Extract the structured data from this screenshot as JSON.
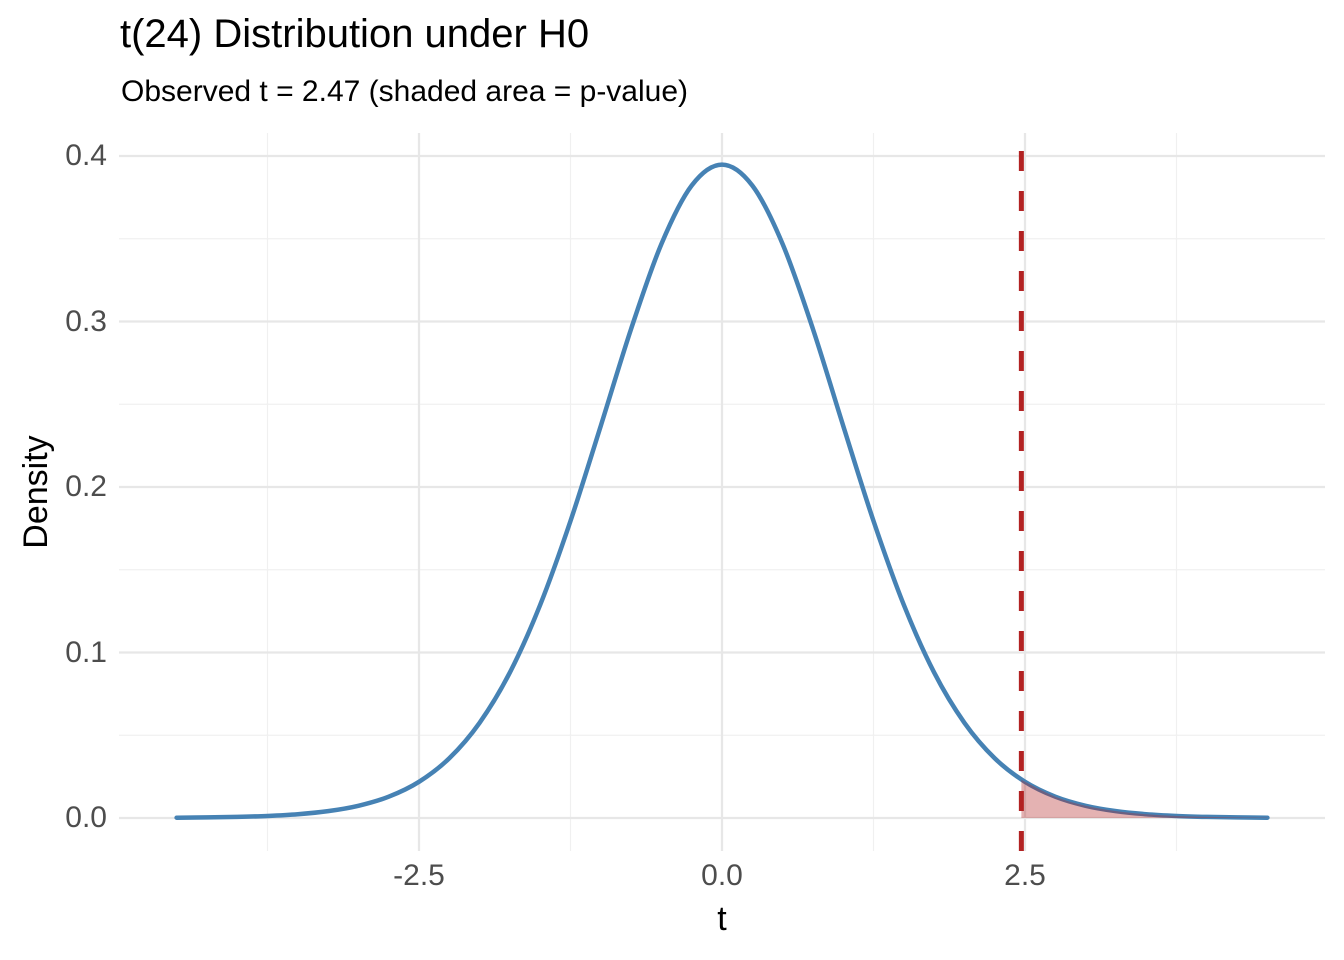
{
  "chart_data": {
    "type": "line",
    "title": "t(24) Distribution under H0",
    "subtitle": "Observed t = 2.47 (shaded area = p-value)",
    "xlabel": "t",
    "ylabel": "Density",
    "distribution": "t",
    "df": 24,
    "observed_t": 2.47,
    "x_ticks": {
      "values": [
        -2.5,
        0,
        2.5
      ],
      "labels": [
        "-2.5",
        "0.0",
        "2.5"
      ]
    },
    "y_ticks": {
      "values": [
        0,
        0.1,
        0.2,
        0.3,
        0.4
      ],
      "labels": [
        "0.0",
        "0.1",
        "0.2",
        "0.3",
        "0.4"
      ]
    },
    "x_minor_ticks": [
      -3.75,
      -1.25,
      1.25,
      3.75
    ],
    "y_minor_ticks": [
      0.05,
      0.15,
      0.25,
      0.35
    ],
    "xlim": [
      -4.96,
      4.97
    ],
    "ylim": [
      -0.0197,
      0.4137
    ],
    "grid": true,
    "legend": "none",
    "series": [
      {
        "name": "t24-density-curve",
        "x": [
          -4.5,
          -4.25,
          -4.0,
          -3.75,
          -3.5,
          -3.25,
          -3.0,
          -2.75,
          -2.5,
          -2.25,
          -2.0,
          -1.75,
          -1.5,
          -1.25,
          -1.0,
          -0.75,
          -0.5,
          -0.25,
          0,
          0.25,
          0.5,
          0.75,
          1.0,
          1.25,
          1.5,
          1.75,
          2.0,
          2.25,
          2.5,
          2.75,
          3.0,
          3.25,
          3.5,
          3.75,
          4.0,
          4.25,
          4.5
        ],
        "y": [
          0.00019,
          0.00035,
          0.00067,
          0.00124,
          0.00228,
          0.00414,
          0.00738,
          0.01287,
          0.02187,
          0.0361,
          0.05754,
          0.08795,
          0.12879,
          0.17949,
          0.237,
          0.29552,
          0.34684,
          0.38219,
          0.39481,
          0.38219,
          0.34684,
          0.29552,
          0.237,
          0.17949,
          0.12879,
          0.08795,
          0.05754,
          0.0361,
          0.02187,
          0.01287,
          0.00738,
          0.00414,
          0.00228,
          0.00124,
          0.00067,
          0.00035,
          0.00019
        ]
      }
    ],
    "vline": {
      "x": 2.47,
      "linetype": "dashed"
    },
    "shaded_region": {
      "from": 2.47,
      "from_density": 0.02327,
      "to": 4.5,
      "label": "p-value"
    },
    "colors": {
      "curve": "#4682B4",
      "vline": "#B22222",
      "fill": "rgba(178,34,34,0.35)",
      "grid_major": "#E7E7E7",
      "grid_minor": "#F0F0F0",
      "tick_text": "#4D4D4D",
      "title_text": "#000000"
    }
  }
}
